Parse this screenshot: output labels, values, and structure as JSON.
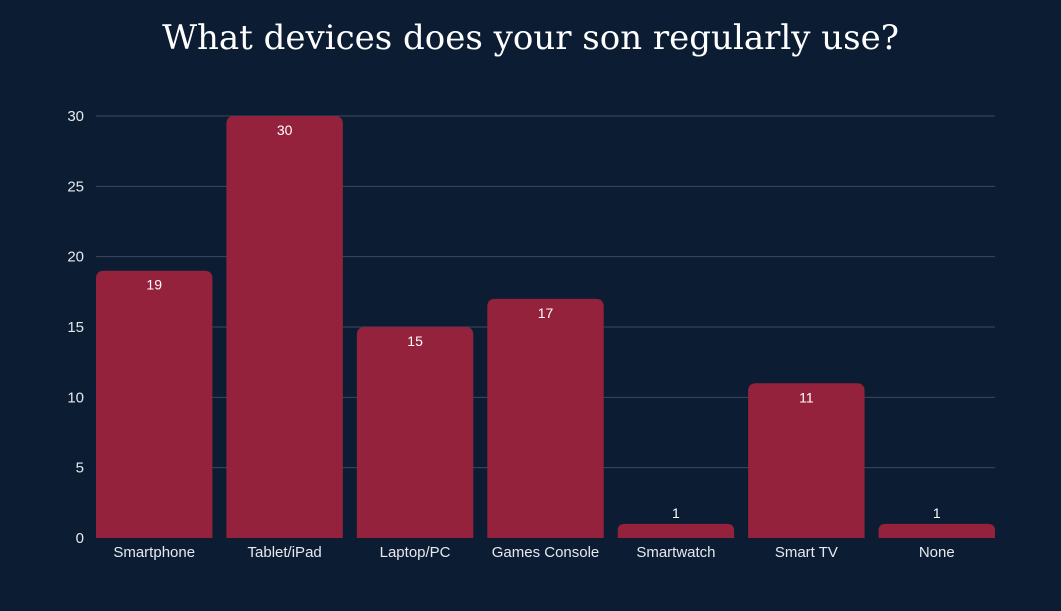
{
  "chart_data": {
    "type": "bar",
    "title": "What devices does your son regularly use?",
    "xlabel": "",
    "ylabel": "",
    "categories": [
      "Smartphone",
      "Tablet/iPad",
      "Laptop/PC",
      "Games Console",
      "Smartwatch",
      "Smart TV",
      "None"
    ],
    "values": [
      19,
      30,
      15,
      17,
      1,
      11,
      1
    ],
    "ylim": [
      0,
      30
    ],
    "yticks": [
      0,
      5,
      10,
      15,
      20,
      25,
      30
    ],
    "grid": true,
    "legend": "none",
    "data_labels": true
  },
  "colors": {
    "background": "#0c1d33",
    "bar": "#95223d",
    "grid": "#3a4a5c",
    "text": "#ffffff",
    "axis_text": "#e6e9ee"
  }
}
